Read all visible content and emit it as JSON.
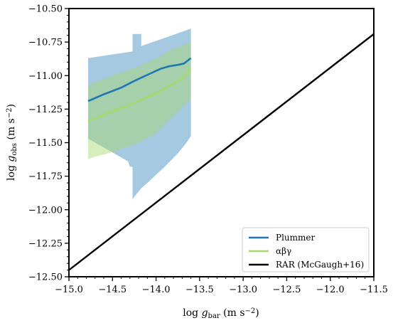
{
  "chart_data": {
    "type": "line",
    "xlabel": "log g_bar (m s^-2)",
    "ylabel": "log g_obs (m s^-2)",
    "xlim": [
      -15.0,
      -11.5
    ],
    "ylim": [
      -12.5,
      -10.5
    ],
    "xticks": [
      "−15.0",
      "−14.5",
      "−14.0",
      "−13.5",
      "−13.0",
      "−12.5",
      "−12.0",
      "−11.5"
    ],
    "yticks": [
      "−10.50",
      "−10.75",
      "−11.00",
      "−11.25",
      "−11.50",
      "−11.75",
      "−12.00",
      "−12.25",
      "−12.50"
    ],
    "xtick_values": [
      -15.0,
      -14.5,
      -14.0,
      -13.5,
      -13.0,
      -12.5,
      -12.0,
      -11.5
    ],
    "ytick_values": [
      -10.5,
      -10.75,
      -11.0,
      -11.25,
      -11.5,
      -11.75,
      -12.0,
      -12.25,
      -12.5
    ],
    "grid": false,
    "legend_position": "lower-right",
    "colors": {
      "plummer": "#1f77b4",
      "abg": "#a6d96a",
      "rar": "#000000"
    },
    "series": [
      {
        "name": "Plummer",
        "key": "plummer",
        "x": [
          -14.78,
          -14.6,
          -14.4,
          -14.25,
          -14.15,
          -14.05,
          -13.95,
          -13.85,
          -13.75,
          -13.68,
          -13.64,
          -13.62,
          -13.6
        ],
        "y": [
          -11.19,
          -11.14,
          -11.09,
          -11.04,
          -11.01,
          -10.98,
          -10.95,
          -10.93,
          -10.92,
          -10.91,
          -10.89,
          -10.88,
          -10.87
        ],
        "band_upper": {
          "x": [
            -14.78,
            -14.27,
            -14.27,
            -14.17,
            -14.17,
            -13.6
          ],
          "y": [
            -10.87,
            -10.82,
            -10.69,
            -10.69,
            -10.78,
            -10.65
          ]
        },
        "band_lower": {
          "x": [
            -14.78,
            -14.32,
            -14.3,
            -14.27,
            -14.27,
            -14.17,
            -14.1,
            -13.9,
            -13.75,
            -13.65,
            -13.6
          ],
          "y": [
            -11.47,
            -11.64,
            -11.68,
            -11.68,
            -11.92,
            -11.84,
            -11.8,
            -11.68,
            -11.58,
            -11.5,
            -11.45
          ]
        }
      },
      {
        "name": "αβγ",
        "key": "abg",
        "x": [
          -14.78,
          -14.6,
          -14.4,
          -14.2,
          -14.0,
          -13.8,
          -13.7,
          -13.6
        ],
        "y": [
          -11.34,
          -11.29,
          -11.24,
          -11.19,
          -11.13,
          -11.06,
          -11.02,
          -10.95
        ],
        "band_upper": {
          "x": [
            -14.78,
            -14.5,
            -14.2,
            -14.0,
            -13.8,
            -13.6
          ],
          "y": [
            -11.07,
            -11.0,
            -10.93,
            -10.87,
            -10.8,
            -10.75
          ]
        },
        "band_lower": {
          "x": [
            -14.78,
            -14.5,
            -14.2,
            -14.0,
            -13.8,
            -13.6
          ],
          "y": [
            -11.62,
            -11.57,
            -11.5,
            -11.43,
            -11.3,
            -11.17
          ]
        }
      },
      {
        "name": "RAR (McGaugh+16)",
        "key": "rar",
        "x": [
          -15.0,
          -11.5
        ],
        "y": [
          -12.45,
          -10.69
        ]
      }
    ]
  },
  "legend": {
    "items": [
      {
        "label": "Plummer",
        "color": "#1f77b4"
      },
      {
        "label": "αβγ",
        "color": "#a6d96a"
      },
      {
        "label": "RAR (McGaugh+16)",
        "color": "#000000"
      }
    ]
  }
}
